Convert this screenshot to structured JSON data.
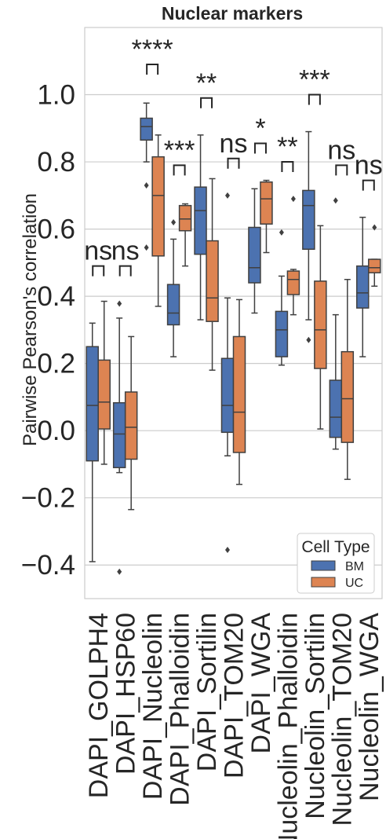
{
  "chart_data": {
    "type": "box",
    "title": "Nuclear markers",
    "ylabel": "Pairwise Pearson's correlation",
    "xlabel": "",
    "ylim": [
      -0.5,
      1.2
    ],
    "yticks": [
      -0.4,
      -0.2,
      0.0,
      0.2,
      0.4,
      0.6,
      0.8,
      1.0
    ],
    "ytick_labels": [
      "−0.4",
      "−0.2",
      "0.0",
      "0.2",
      "0.4",
      "0.6",
      "0.8",
      "1.0"
    ],
    "grid": true,
    "categories": [
      "DAPI_GOLPH4",
      "DAPI_HSP60",
      "DAPI_Nucleolin",
      "DAPI_Phalloidin",
      "DAPI_Sortilin",
      "DAPI_TOM20",
      "DAPI_WGA",
      "Nucleolin_Phalloidin",
      "Nucleolin_Sortilin",
      "Nucleolin_TOM20",
      "Nucleolin_WGA"
    ],
    "legend": {
      "title": "Cell Type",
      "position": "lower-right"
    },
    "series": [
      {
        "name": "BM",
        "color": "#4c72b0",
        "boxes": [
          {
            "whislo": -0.39,
            "q1": -0.09,
            "med": 0.075,
            "q3": 0.25,
            "whishi": 0.32,
            "fliers": []
          },
          {
            "whislo": -0.125,
            "q1": -0.11,
            "med": -0.01,
            "q3": 0.083,
            "whishi": 0.335,
            "fliers": [
              0.378,
              -0.42
            ]
          },
          {
            "whislo": 0.8,
            "q1": 0.865,
            "med": 0.905,
            "q3": 0.93,
            "whishi": 0.975,
            "fliers": [
              0.73,
              0.545
            ]
          },
          {
            "whislo": 0.22,
            "q1": 0.315,
            "med": 0.35,
            "q3": 0.435,
            "whishi": 0.57,
            "fliers": [
              0.62
            ]
          },
          {
            "whislo": 0.33,
            "q1": 0.525,
            "med": 0.655,
            "q3": 0.725,
            "whishi": 0.88,
            "fliers": []
          },
          {
            "whislo": -0.075,
            "q1": -0.005,
            "med": 0.075,
            "q3": 0.215,
            "whishi": 0.395,
            "fliers": [
              0.7,
              -0.355
            ]
          },
          {
            "whislo": 0.35,
            "q1": 0.44,
            "med": 0.485,
            "q3": 0.605,
            "whishi": 0.72,
            "fliers": []
          },
          {
            "whislo": 0.195,
            "q1": 0.22,
            "med": 0.3,
            "q3": 0.355,
            "whishi": 0.46,
            "fliers": [
              0.59
            ]
          },
          {
            "whislo": 0.33,
            "q1": 0.54,
            "med": 0.67,
            "q3": 0.715,
            "whishi": 0.89,
            "fliers": [
              0.27
            ]
          },
          {
            "whislo": -0.055,
            "q1": -0.02,
            "med": 0.04,
            "q3": 0.15,
            "whishi": 0.345,
            "fliers": [
              0.685
            ]
          },
          {
            "whislo": 0.22,
            "q1": 0.365,
            "med": 0.41,
            "q3": 0.49,
            "whishi": 0.635,
            "fliers": []
          }
        ]
      },
      {
        "name": "UC",
        "color": "#dd8452",
        "boxes": [
          {
            "whislo": -0.1,
            "q1": 0.005,
            "med": 0.085,
            "q3": 0.21,
            "whishi": 0.385,
            "fliers": []
          },
          {
            "whislo": -0.235,
            "q1": -0.085,
            "med": 0.01,
            "q3": 0.115,
            "whishi": 0.28,
            "fliers": []
          },
          {
            "whislo": 0.37,
            "q1": 0.52,
            "med": 0.7,
            "q3": 0.815,
            "whishi": 0.88,
            "fliers": []
          },
          {
            "whislo": 0.49,
            "q1": 0.595,
            "med": 0.63,
            "q3": 0.67,
            "whishi": 0.675,
            "fliers": []
          },
          {
            "whislo": 0.18,
            "q1": 0.325,
            "med": 0.395,
            "q3": 0.565,
            "whishi": 0.75,
            "fliers": []
          },
          {
            "whislo": -0.16,
            "q1": -0.065,
            "med": 0.055,
            "q3": 0.28,
            "whishi": 0.39,
            "fliers": []
          },
          {
            "whislo": 0.53,
            "q1": 0.615,
            "med": 0.69,
            "q3": 0.74,
            "whishi": 0.745,
            "fliers": []
          },
          {
            "whislo": 0.345,
            "q1": 0.405,
            "med": 0.45,
            "q3": 0.475,
            "whishi": 0.48,
            "fliers": [
              0.69
            ]
          },
          {
            "whislo": 0.005,
            "q1": 0.185,
            "med": 0.3,
            "q3": 0.445,
            "whishi": 0.61,
            "fliers": []
          },
          {
            "whislo": -0.145,
            "q1": -0.035,
            "med": 0.095,
            "q3": 0.235,
            "whishi": 0.45,
            "fliers": []
          },
          {
            "whislo": 0.43,
            "q1": 0.47,
            "med": 0.485,
            "q3": 0.51,
            "whishi": 0.51,
            "fliers": [
              0.605
            ]
          }
        ]
      }
    ],
    "annotations": [
      {
        "category": "DAPI_GOLPH4",
        "text": "ns",
        "y": 0.49
      },
      {
        "category": "DAPI_HSP60",
        "text": "ns",
        "y": 0.49
      },
      {
        "category": "DAPI_Nucleolin",
        "text": "****",
        "y": 1.09
      },
      {
        "category": "DAPI_Phalloidin",
        "text": "***",
        "y": 0.79
      },
      {
        "category": "DAPI_Sortilin",
        "text": "**",
        "y": 0.99
      },
      {
        "category": "DAPI_TOM20",
        "text": "ns",
        "y": 0.81
      },
      {
        "category": "DAPI_WGA",
        "text": "*",
        "y": 0.855
      },
      {
        "category": "Nucleolin_Phalloidin",
        "text": "**",
        "y": 0.8
      },
      {
        "category": "Nucleolin_Sortilin",
        "text": "***",
        "y": 1.0
      },
      {
        "category": "Nucleolin_TOM20",
        "text": "ns",
        "y": 0.79
      },
      {
        "category": "Nucleolin_WGA",
        "text": "ns",
        "y": 0.745
      }
    ]
  }
}
